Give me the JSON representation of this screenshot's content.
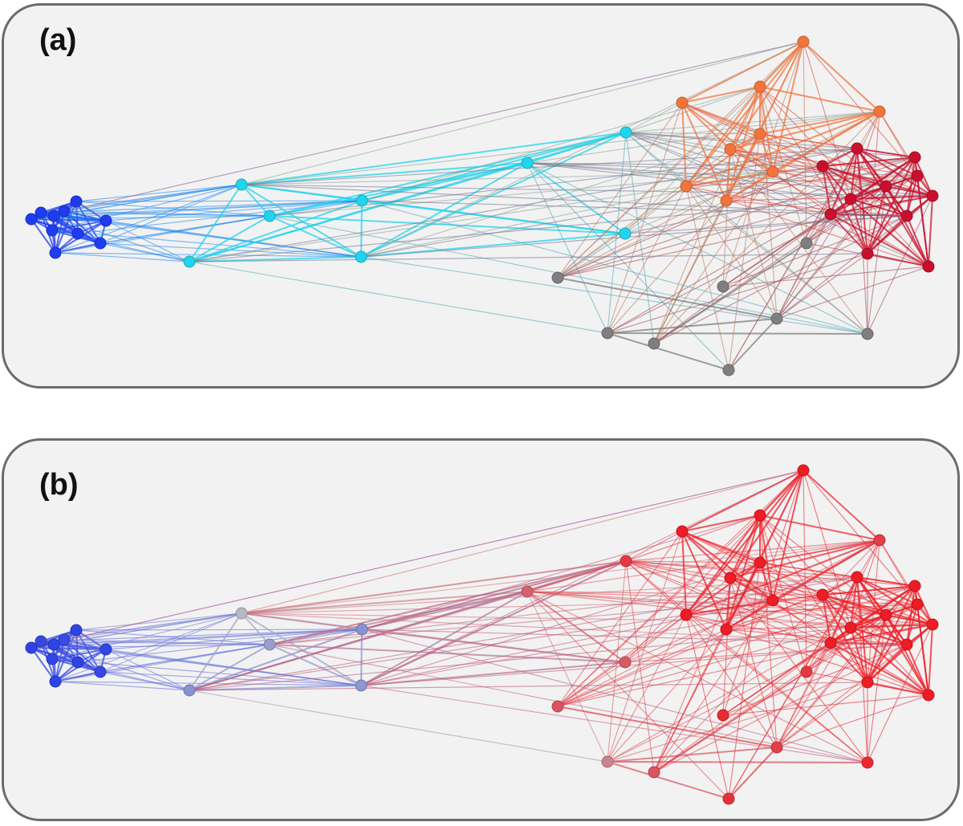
{
  "panels": [
    {
      "label": "(a)",
      "coloring": "community"
    },
    {
      "label": "(b)",
      "coloring": "gradient"
    }
  ],
  "colors": {
    "blue": "#1f3cf0",
    "cyan": "#22d3ee",
    "gray": "#7f7f7f",
    "orange": "#f2743c",
    "crimson": "#c8102e",
    "gradient_low": "#2f43e6",
    "gradient_mid": "#b8b8c4",
    "gradient_high": "#ee1c25",
    "panel_bg": "#f2f2f2",
    "panel_border": "#6b6b6b"
  },
  "graph": {
    "node_count": 46,
    "groups": [
      "blue",
      "cyan",
      "gray",
      "orange",
      "crimson"
    ],
    "nodes": [
      {
        "id": 0,
        "group": "blue",
        "value": 0.0
      },
      {
        "id": 1,
        "group": "blue",
        "value": 0.02
      },
      {
        "id": 2,
        "group": "blue",
        "value": 0.0
      },
      {
        "id": 3,
        "group": "blue",
        "value": 0.03
      },
      {
        "id": 4,
        "group": "blue",
        "value": 0.0
      },
      {
        "id": 5,
        "group": "blue",
        "value": 0.01
      },
      {
        "id": 6,
        "group": "blue",
        "value": 0.0
      },
      {
        "id": 7,
        "group": "blue",
        "value": 0.02
      },
      {
        "id": 8,
        "group": "blue",
        "value": 0.0
      },
      {
        "id": 9,
        "group": "blue",
        "value": 0.01
      },
      {
        "id": 10,
        "group": "cyan",
        "value": 0.45
      },
      {
        "id": 11,
        "group": "cyan",
        "value": 0.35
      },
      {
        "id": 12,
        "group": "cyan",
        "value": 0.3
      },
      {
        "id": 13,
        "group": "cyan",
        "value": 0.3
      },
      {
        "id": 14,
        "group": "cyan",
        "value": 0.32
      },
      {
        "id": 15,
        "group": "cyan",
        "value": 0.7
      },
      {
        "id": 16,
        "group": "cyan",
        "value": 0.82
      },
      {
        "id": 17,
        "group": "cyan",
        "value": 0.72
      },
      {
        "id": 18,
        "group": "gray",
        "value": 0.74
      },
      {
        "id": 19,
        "group": "gray",
        "value": 0.6
      },
      {
        "id": 20,
        "group": "gray",
        "value": 0.74
      },
      {
        "id": 21,
        "group": "gray",
        "value": 0.86
      },
      {
        "id": 22,
        "group": "gray",
        "value": 0.82
      },
      {
        "id": 23,
        "group": "gray",
        "value": 0.8
      },
      {
        "id": 24,
        "group": "gray",
        "value": 0.86
      },
      {
        "id": 25,
        "group": "gray",
        "value": 0.84
      },
      {
        "id": 26,
        "group": "orange",
        "value": 0.97
      },
      {
        "id": 27,
        "group": "orange",
        "value": 0.9
      },
      {
        "id": 28,
        "group": "orange",
        "value": 0.92
      },
      {
        "id": 29,
        "group": "orange",
        "value": 0.8
      },
      {
        "id": 30,
        "group": "orange",
        "value": 0.93
      },
      {
        "id": 31,
        "group": "orange",
        "value": 0.92
      },
      {
        "id": 32,
        "group": "orange",
        "value": 0.92
      },
      {
        "id": 33,
        "group": "orange",
        "value": 0.94
      },
      {
        "id": 34,
        "group": "orange",
        "value": 0.91
      },
      {
        "id": 35,
        "group": "crimson",
        "value": 0.99
      },
      {
        "id": 36,
        "group": "crimson",
        "value": 0.97
      },
      {
        "id": 37,
        "group": "crimson",
        "value": 0.97
      },
      {
        "id": 38,
        "group": "crimson",
        "value": 1.0
      },
      {
        "id": 39,
        "group": "crimson",
        "value": 0.98
      },
      {
        "id": 40,
        "group": "crimson",
        "value": 0.98
      },
      {
        "id": 41,
        "group": "crimson",
        "value": 0.98
      },
      {
        "id": 42,
        "group": "crimson",
        "value": 0.97
      },
      {
        "id": 43,
        "group": "crimson",
        "value": 0.99
      },
      {
        "id": 44,
        "group": "crimson",
        "value": 0.96
      },
      {
        "id": 45,
        "group": "crimson",
        "value": 0.96
      }
    ]
  }
}
